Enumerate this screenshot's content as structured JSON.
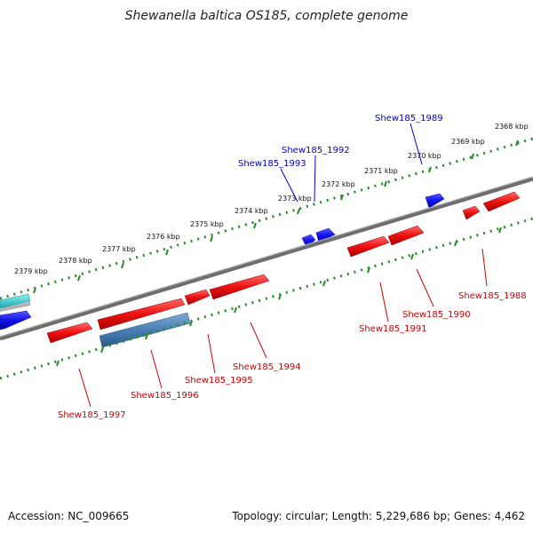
{
  "title": "Shewanella baltica OS185, complete genome",
  "footer": {
    "accession": "Accession: NC_009665",
    "summary": "Topology: circular; Length: 5,229,686 bp; Genes: 4,462"
  },
  "colors": {
    "forward_gene": "#ee1111",
    "reverse_gene": "#1111ee",
    "rna_gene": "#4a7fb5",
    "backbone": "#808080",
    "tick": "#2a8a2a",
    "forward_label": "#cc0000",
    "reverse_label": "#0000cc"
  },
  "scale_labels": [
    "2368 kbp",
    "2369 kbp",
    "2370 kbp",
    "2371 kbp",
    "2372 kbp",
    "2373 kbp",
    "2374 kbp",
    "2375 kbp",
    "2376 kbp",
    "2377 kbp",
    "2378 kbp",
    "2379 kbp"
  ],
  "reverse_gene_labels": [
    "Shew185_1989",
    "Shew185_1992",
    "Shew185_1993"
  ],
  "forward_gene_labels": [
    "Shew185_1988",
    "Shew185_1990",
    "Shew185_1991",
    "Shew185_1994",
    "Shew185_1995",
    "Shew185_1996",
    "Shew185_1997"
  ]
}
